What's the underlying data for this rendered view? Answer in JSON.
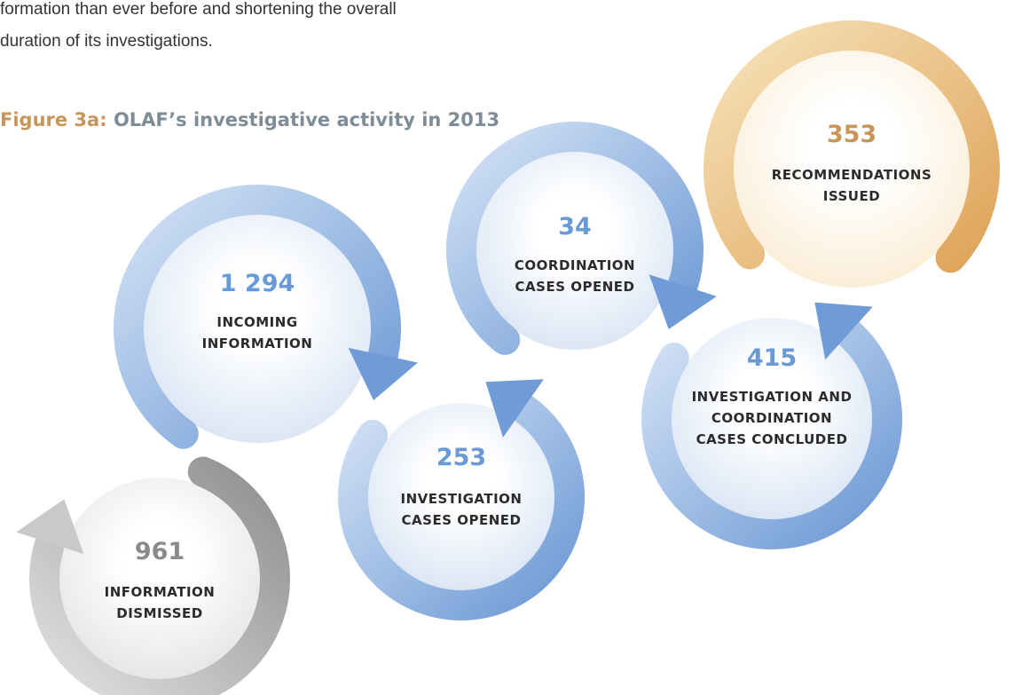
{
  "intro": {
    "lines": [
      "formation than ever before and shortening the overall",
      "duration of its investigations."
    ]
  },
  "figure": {
    "label": "Figure 3a:",
    "title": "OLAF’s investigative activity in 2013"
  },
  "nodes": [
    {
      "value": "1 294",
      "label": [
        "INCOMING",
        "INFORMATION"
      ]
    },
    {
      "value": "34",
      "label": [
        "COORDINATION",
        "CASES OPENED"
      ]
    },
    {
      "value": "353",
      "label": [
        "RECOMMENDATIONS",
        "ISSUED"
      ]
    },
    {
      "value": "253",
      "label": [
        "INVESTIGATION",
        "CASES OPENED"
      ]
    },
    {
      "value": "415",
      "label": [
        "INVESTIGATION AND",
        "COORDINATION",
        "CASES CONCLUDED"
      ]
    },
    {
      "value": "961",
      "label": [
        "INFORMATION",
        "DISMISSED"
      ]
    }
  ]
}
